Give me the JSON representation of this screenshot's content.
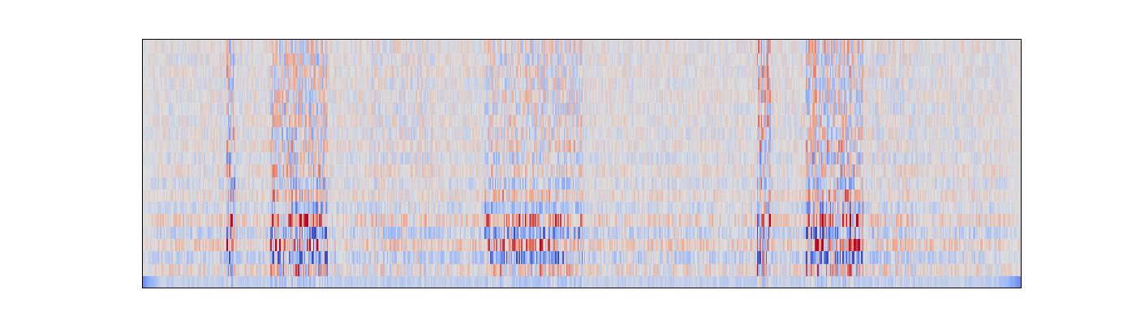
{
  "chart_data": {
    "type": "heatmap",
    "title": "",
    "xlabel": "",
    "ylabel": "",
    "axes_visible": false,
    "grid": false,
    "legend": "none",
    "colormap": "coolwarm",
    "n_rows": 20,
    "n_cols": 700,
    "value_range": [
      -1,
      1
    ],
    "row_band_bias": [
      -0.85,
      0.1,
      -0.35,
      0.3,
      -0.3,
      0.25,
      -0.2,
      0.15,
      -0.15,
      0.1,
      -0.1,
      0.08,
      -0.05,
      0.05,
      -0.04,
      0.03,
      -0.03,
      0.03,
      -0.02,
      0.02
    ],
    "high_activity_segments": [
      {
        "x_start": 0.095,
        "x_end": 0.105,
        "intensity": 0.9
      },
      {
        "x_start": 0.145,
        "x_end": 0.21,
        "intensity": 0.75
      },
      {
        "x_start": 0.26,
        "x_end": 0.33,
        "intensity": 0.35
      },
      {
        "x_start": 0.39,
        "x_end": 0.5,
        "intensity": 0.55
      },
      {
        "x_start": 0.7,
        "x_end": 0.715,
        "intensity": 0.95
      },
      {
        "x_start": 0.755,
        "x_end": 0.82,
        "intensity": 0.8
      },
      {
        "x_start": 0.83,
        "x_end": 0.88,
        "intensity": 0.35
      }
    ],
    "edge_fade": {
      "left": 0.02,
      "right": 0.03
    }
  }
}
